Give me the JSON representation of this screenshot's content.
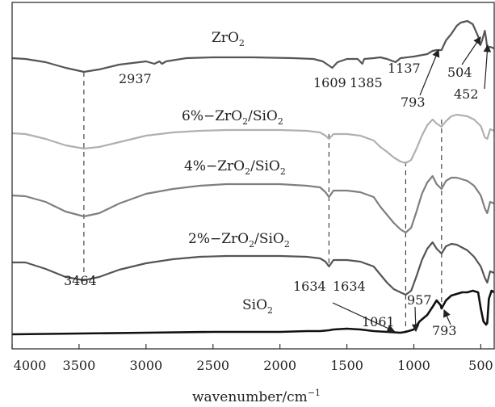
{
  "chart_data": {
    "type": "line",
    "xlabel": "wavenumber/cm",
    "xlabel_sup": "−1",
    "xlim": [
      4000,
      400
    ],
    "x_ticks": [
      4000,
      3500,
      3000,
      2500,
      2000,
      1500,
      1000,
      500
    ],
    "x_tick_labels": [
      "4000",
      "3500",
      "3000",
      "2500",
      "2000",
      "1500",
      "1000",
      "500"
    ],
    "grid": false,
    "series": [
      {
        "name": "ZrO2",
        "label_parts": [
          "ZrO",
          "2"
        ],
        "color": "#555555",
        "points": [
          [
            4000,
            72
          ],
          [
            3900,
            73
          ],
          [
            3750,
            77
          ],
          [
            3600,
            84
          ],
          [
            3464,
            89
          ],
          [
            3350,
            86
          ],
          [
            3200,
            80
          ],
          [
            3000,
            76
          ],
          [
            2937,
            79
          ],
          [
            2900,
            76
          ],
          [
            2880,
            79
          ],
          [
            2850,
            76
          ],
          [
            2700,
            72
          ],
          [
            2500,
            71
          ],
          [
            2200,
            71
          ],
          [
            1900,
            72
          ],
          [
            1750,
            73
          ],
          [
            1680,
            76
          ],
          [
            1609,
            84
          ],
          [
            1570,
            77
          ],
          [
            1500,
            73
          ],
          [
            1420,
            73
          ],
          [
            1385,
            79
          ],
          [
            1370,
            73
          ],
          [
            1300,
            72
          ],
          [
            1250,
            71
          ],
          [
            1200,
            73
          ],
          [
            1137,
            77
          ],
          [
            1100,
            72
          ],
          [
            1000,
            70
          ],
          [
            900,
            67
          ],
          [
            860,
            63
          ],
          [
            830,
            62
          ],
          [
            793,
            62
          ],
          [
            760,
            50
          ],
          [
            720,
            42
          ],
          [
            680,
            32
          ],
          [
            650,
            28
          ],
          [
            600,
            26
          ],
          [
            560,
            30
          ],
          [
            520,
            45
          ],
          [
            504,
            56
          ],
          [
            490,
            50
          ],
          [
            470,
            38
          ],
          [
            460,
            48
          ],
          [
            452,
            60
          ],
          [
            430,
            58
          ],
          [
            400,
            60
          ]
        ]
      },
      {
        "name": "6%-ZrO2/SiO2",
        "label_parts": [
          "6%−ZrO",
          "2",
          "/SiO",
          "2"
        ],
        "color": "#b0b0b0",
        "points": [
          [
            4000,
            165
          ],
          [
            3900,
            166
          ],
          [
            3750,
            172
          ],
          [
            3600,
            180
          ],
          [
            3464,
            184
          ],
          [
            3350,
            182
          ],
          [
            3200,
            176
          ],
          [
            3000,
            168
          ],
          [
            2800,
            164
          ],
          [
            2600,
            162
          ],
          [
            2400,
            161
          ],
          [
            2000,
            161
          ],
          [
            1800,
            162
          ],
          [
            1700,
            164
          ],
          [
            1660,
            168
          ],
          [
            1634,
            172
          ],
          [
            1600,
            166
          ],
          [
            1500,
            166
          ],
          [
            1400,
            168
          ],
          [
            1300,
            174
          ],
          [
            1250,
            182
          ],
          [
            1200,
            188
          ],
          [
            1150,
            195
          ],
          [
            1100,
            200
          ],
          [
            1061,
            202
          ],
          [
            1020,
            198
          ],
          [
            980,
            184
          ],
          [
            940,
            168
          ],
          [
            900,
            155
          ],
          [
            860,
            148
          ],
          [
            830,
            153
          ],
          [
            793,
            157
          ],
          [
            760,
            150
          ],
          [
            720,
            144
          ],
          [
            680,
            142
          ],
          [
            600,
            144
          ],
          [
            550,
            148
          ],
          [
            500,
            156
          ],
          [
            470,
            170
          ],
          [
            452,
            172
          ],
          [
            430,
            160
          ],
          [
            400,
            162
          ]
        ]
      },
      {
        "name": "4%-ZrO2/SiO2",
        "label_parts": [
          "4%−ZrO",
          "2",
          "/SiO",
          "2"
        ],
        "color": "#7f7f7f",
        "points": [
          [
            4000,
            242
          ],
          [
            3900,
            243
          ],
          [
            3750,
            250
          ],
          [
            3600,
            262
          ],
          [
            3464,
            268
          ],
          [
            3350,
            264
          ],
          [
            3200,
            252
          ],
          [
            3000,
            240
          ],
          [
            2800,
            234
          ],
          [
            2600,
            230
          ],
          [
            2400,
            228
          ],
          [
            2000,
            228
          ],
          [
            1800,
            230
          ],
          [
            1700,
            232
          ],
          [
            1660,
            238
          ],
          [
            1634,
            244
          ],
          [
            1600,
            236
          ],
          [
            1500,
            236
          ],
          [
            1400,
            238
          ],
          [
            1300,
            244
          ],
          [
            1250,
            256
          ],
          [
            1200,
            266
          ],
          [
            1150,
            276
          ],
          [
            1100,
            284
          ],
          [
            1061,
            288
          ],
          [
            1020,
            282
          ],
          [
            980,
            262
          ],
          [
            940,
            240
          ],
          [
            900,
            226
          ],
          [
            860,
            218
          ],
          [
            830,
            228
          ],
          [
            793,
            234
          ],
          [
            760,
            224
          ],
          [
            720,
            220
          ],
          [
            680,
            220
          ],
          [
            600,
            224
          ],
          [
            550,
            230
          ],
          [
            500,
            242
          ],
          [
            470,
            258
          ],
          [
            452,
            264
          ],
          [
            430,
            250
          ],
          [
            400,
            252
          ]
        ]
      },
      {
        "name": "2%-ZrO2/SiO2",
        "label_parts": [
          "2%−ZrO",
          "2",
          "/SiO",
          "2"
        ],
        "color": "#555555",
        "points": [
          [
            4000,
            325
          ],
          [
            3900,
            325
          ],
          [
            3750,
            333
          ],
          [
            3600,
            343
          ],
          [
            3464,
            347
          ],
          [
            3350,
            343
          ],
          [
            3200,
            334
          ],
          [
            3000,
            326
          ],
          [
            2800,
            321
          ],
          [
            2600,
            318
          ],
          [
            2400,
            317
          ],
          [
            2000,
            317
          ],
          [
            1800,
            318
          ],
          [
            1700,
            320
          ],
          [
            1660,
            324
          ],
          [
            1634,
            330
          ],
          [
            1600,
            322
          ],
          [
            1500,
            322
          ],
          [
            1400,
            324
          ],
          [
            1300,
            330
          ],
          [
            1250,
            340
          ],
          [
            1200,
            350
          ],
          [
            1150,
            358
          ],
          [
            1100,
            362
          ],
          [
            1061,
            365
          ],
          [
            1020,
            360
          ],
          [
            980,
            342
          ],
          [
            940,
            322
          ],
          [
            900,
            308
          ],
          [
            860,
            300
          ],
          [
            830,
            308
          ],
          [
            793,
            314
          ],
          [
            760,
            305
          ],
          [
            720,
            302
          ],
          [
            680,
            303
          ],
          [
            600,
            310
          ],
          [
            550,
            318
          ],
          [
            500,
            330
          ],
          [
            470,
            344
          ],
          [
            452,
            350
          ],
          [
            430,
            336
          ],
          [
            400,
            338
          ]
        ]
      },
      {
        "name": "SiO2",
        "label_parts": [
          "SiO",
          "2"
        ],
        "color": "#111111",
        "points": [
          [
            4000,
            414
          ],
          [
            3500,
            413
          ],
          [
            3000,
            412
          ],
          [
            2500,
            411
          ],
          [
            2000,
            411
          ],
          [
            1800,
            410
          ],
          [
            1700,
            410
          ],
          [
            1634,
            409
          ],
          [
            1600,
            408
          ],
          [
            1500,
            407
          ],
          [
            1400,
            408
          ],
          [
            1300,
            410
          ],
          [
            1200,
            411
          ],
          [
            1100,
            412
          ],
          [
            1061,
            411
          ],
          [
            1000,
            408
          ],
          [
            957,
            398
          ],
          [
            900,
            390
          ],
          [
            860,
            380
          ],
          [
            830,
            372
          ],
          [
            800,
            378
          ],
          [
            793,
            382
          ],
          [
            760,
            372
          ],
          [
            720,
            366
          ],
          [
            680,
            364
          ],
          [
            640,
            362
          ],
          [
            600,
            362
          ],
          [
            560,
            360
          ],
          [
            520,
            362
          ],
          [
            500,
            382
          ],
          [
            480,
            398
          ],
          [
            460,
            402
          ],
          [
            452,
            400
          ],
          [
            440,
            370
          ],
          [
            420,
            360
          ],
          [
            400,
            362
          ]
        ]
      }
    ],
    "dashed_lines": [
      {
        "x": 3464,
        "y1": 89,
        "y2": 342
      },
      {
        "x": 1634,
        "y1": 166,
        "y2": 331
      },
      {
        "x": 1061,
        "y1": 200,
        "y2": 412
      },
      {
        "x": 793,
        "y1": 148,
        "y2": 382
      }
    ],
    "annotations": [
      {
        "text": "2937"
      },
      {
        "text": "1609"
      },
      {
        "text": "1385"
      },
      {
        "text": "1137"
      },
      {
        "text": "504"
      },
      {
        "text": "452"
      },
      {
        "text": "793"
      },
      {
        "text": "3464"
      },
      {
        "text": "1634"
      },
      {
        "text": "1634"
      },
      {
        "text": "1061"
      },
      {
        "text": "957"
      },
      {
        "text": "793"
      }
    ]
  }
}
